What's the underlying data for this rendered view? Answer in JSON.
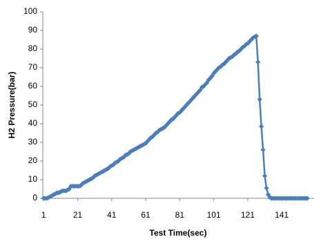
{
  "chart_data": {
    "type": "line",
    "xlabel": "Test Time(sec)",
    "ylabel": "H2 Pressure(bar)",
    "x": [
      1,
      2,
      3,
      4,
      5,
      6,
      7,
      8,
      9,
      10,
      11,
      12,
      13,
      14,
      15,
      16,
      17,
      18,
      19,
      20,
      21,
      22,
      23,
      24,
      25,
      26,
      27,
      28,
      29,
      30,
      31,
      32,
      33,
      34,
      35,
      36,
      37,
      38,
      39,
      40,
      41,
      42,
      43,
      44,
      45,
      46,
      47,
      48,
      49,
      50,
      51,
      52,
      53,
      54,
      55,
      56,
      57,
      58,
      59,
      60,
      61,
      62,
      63,
      64,
      65,
      66,
      67,
      68,
      69,
      70,
      71,
      72,
      73,
      74,
      75,
      76,
      77,
      78,
      79,
      80,
      81,
      82,
      83,
      84,
      85,
      86,
      87,
      88,
      89,
      90,
      91,
      92,
      93,
      94,
      95,
      96,
      97,
      98,
      99,
      100,
      101,
      102,
      103,
      104,
      105,
      106,
      107,
      108,
      109,
      110,
      111,
      112,
      113,
      114,
      115,
      116,
      117,
      118,
      119,
      120,
      121,
      122,
      123,
      124,
      125,
      126,
      127,
      128,
      129,
      130,
      131,
      132,
      133,
      134,
      135,
      136,
      137,
      138,
      139,
      140,
      141,
      142,
      143,
      144,
      145,
      146,
      147,
      148,
      149,
      150,
      151,
      152,
      153,
      154,
      155,
      156
    ],
    "series": [
      {
        "color": "#4a7ebb",
        "values": [
          0,
          0,
          0,
          0.5,
          1,
          1.5,
          2,
          2.5,
          3,
          3,
          3.5,
          4,
          4,
          4,
          4.5,
          5,
          6.5,
          6.5,
          6.5,
          6.5,
          6.5,
          6.5,
          7,
          8,
          8.5,
          9,
          9.5,
          10,
          10.5,
          11,
          12,
          12.5,
          13,
          13.5,
          14,
          14.5,
          15,
          15.5,
          16,
          17,
          17.5,
          18,
          19,
          19.5,
          20,
          21,
          21.5,
          22,
          23,
          23.5,
          24,
          25,
          25.5,
          26,
          26.5,
          27,
          27.5,
          28,
          28.5,
          29,
          29.5,
          30.5,
          31.5,
          32.5,
          33,
          34,
          35,
          35.5,
          36.5,
          37,
          37.5,
          38,
          39,
          40,
          41,
          42,
          42.5,
          43.5,
          44.5,
          45.5,
          46,
          47,
          48,
          49,
          50,
          51,
          52,
          53,
          54,
          55,
          56,
          57,
          58,
          59.5,
          60,
          61,
          62,
          63.5,
          64.5,
          65.5,
          67,
          68,
          69,
          70,
          70.5,
          71.5,
          72,
          73,
          74,
          75,
          75.5,
          76,
          77,
          77.5,
          78.5,
          79,
          80,
          81,
          81.5,
          82.5,
          83,
          84,
          85,
          86,
          86.5,
          87,
          73,
          53,
          38.5,
          26,
          12,
          5.5,
          2,
          0.5,
          0,
          0,
          0,
          0,
          0,
          0,
          0,
          0,
          0,
          0,
          0,
          0,
          0,
          0,
          0,
          0,
          0,
          0,
          0,
          0,
          0,
          0
        ]
      }
    ],
    "xlim": [
      0.5,
      160
    ],
    "xticks": [
      1,
      21,
      41,
      61,
      81,
      101,
      121,
      141
    ],
    "ylim": [
      0,
      100
    ],
    "yticks": [
      0,
      10,
      20,
      30,
      40,
      50,
      60,
      70,
      80,
      90,
      100
    ],
    "grid": false
  }
}
